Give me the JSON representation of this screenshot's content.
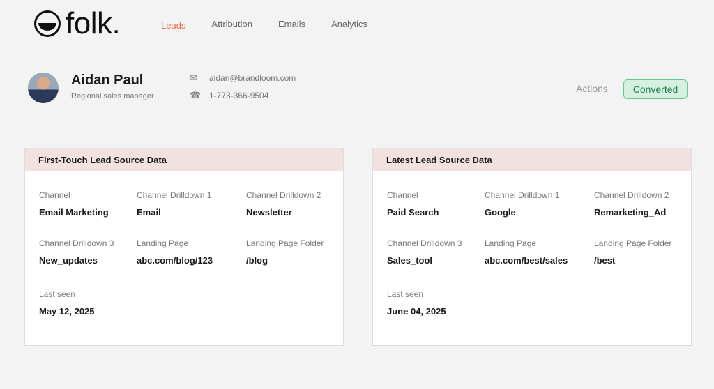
{
  "brand": {
    "name": "folk."
  },
  "nav": [
    {
      "label": "Leads",
      "active": true
    },
    {
      "label": "Attribution"
    },
    {
      "label": "Emails"
    },
    {
      "label": "Analytics"
    }
  ],
  "profile": {
    "name": "Aidan Paul",
    "role": "Regional sales manager",
    "email": "aidan@brandloom.com",
    "phone": "1-773-366-9504"
  },
  "actions_label": "Actions",
  "status": {
    "label": "Converted",
    "color": "#23824f"
  },
  "cards": [
    {
      "title": "First-Touch Lead Source Data",
      "fields": [
        {
          "label": "Channel",
          "value": "Email Marketing"
        },
        {
          "label": "Channel Drilldown 1",
          "value": "Email"
        },
        {
          "label": "Channel Drilldown 2",
          "value": "Newsletter"
        },
        {
          "label": "Channel Drilldown 3",
          "value": "New_updates"
        },
        {
          "label": "Landing Page",
          "value": "abc.com/blog/123"
        },
        {
          "label": "Landing Page Folder",
          "value": "/blog"
        },
        {
          "label": "Last seen",
          "value": "May 12, 2025"
        }
      ]
    },
    {
      "title": "Latest Lead Source Data",
      "fields": [
        {
          "label": "Channel",
          "value": "Paid Search"
        },
        {
          "label": "Channel Drilldown 1",
          "value": "Google"
        },
        {
          "label": "Channel Drilldown 2",
          "value": "Remarketing_Ad"
        },
        {
          "label": "Channel Drilldown 3",
          "value": "Sales_tool"
        },
        {
          "label": "Landing Page",
          "value": "abc.com/best/sales"
        },
        {
          "label": "Landing Page Folder",
          "value": "/best"
        },
        {
          "label": "Last seen",
          "value": "June 04, 2025"
        }
      ]
    }
  ]
}
